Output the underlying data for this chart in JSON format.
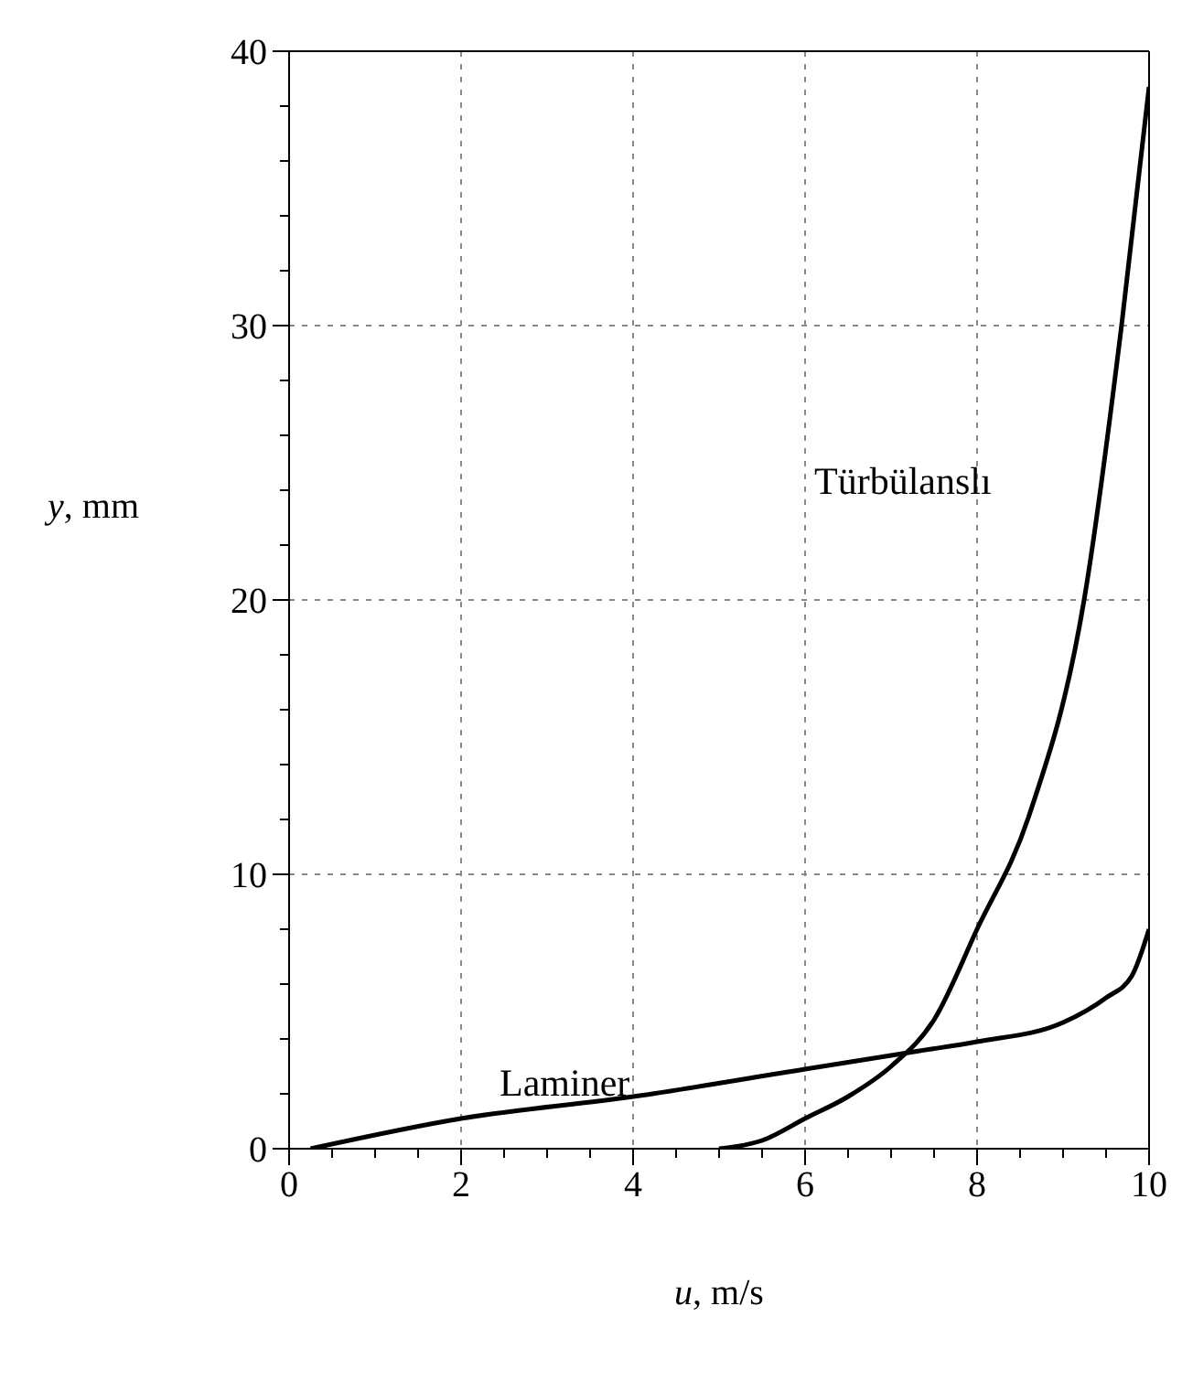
{
  "chart_data": {
    "type": "line",
    "xlabel": "u, m/s",
    "ylabel": "y, mm",
    "xlim": [
      0,
      10
    ],
    "ylim": [
      0,
      40
    ],
    "xticks": [
      0,
      {
        "value": 0.5,
        "label": null
      },
      {
        "value": 1,
        "label": null
      },
      {
        "value": 1.5,
        "label": null
      },
      2,
      {
        "value": 2.5,
        "label": null
      },
      {
        "value": 3,
        "label": null
      },
      {
        "value": 3.5,
        "label": null
      },
      4,
      {
        "value": 4.5,
        "label": null
      },
      {
        "value": 5,
        "label": null
      },
      {
        "value": 5.5,
        "label": null
      },
      6,
      {
        "value": 6.5,
        "label": null
      },
      {
        "value": 7,
        "label": null
      },
      {
        "value": 7.5,
        "label": null
      },
      8,
      {
        "value": 8.5,
        "label": null
      },
      {
        "value": 9,
        "label": null
      },
      {
        "value": 9.5,
        "label": null
      },
      10
    ],
    "yticks": [
      0,
      {
        "value": 2,
        "label": null
      },
      {
        "value": 4,
        "label": null
      },
      {
        "value": 6,
        "label": null
      },
      {
        "value": 8,
        "label": null
      },
      10,
      {
        "value": 12,
        "label": null
      },
      {
        "value": 14,
        "label": null
      },
      {
        "value": 16,
        "label": null
      },
      {
        "value": 18,
        "label": null
      },
      20,
      {
        "value": 22,
        "label": null
      },
      {
        "value": 24,
        "label": null
      },
      {
        "value": 26,
        "label": null
      },
      {
        "value": 28,
        "label": null
      },
      30,
      {
        "value": 32,
        "label": null
      },
      {
        "value": 34,
        "label": null
      },
      {
        "value": 36,
        "label": null
      },
      {
        "value": 38,
        "label": null
      },
      40
    ],
    "grid": true,
    "marker": "none",
    "line_style": "solid",
    "series": [
      {
        "color": "#000000",
        "x": [
          0.25,
          2,
          4,
          6,
          7.3,
          8,
          9,
          9.5,
          9.8,
          10
        ],
        "values": [
          0,
          1.1,
          1.9,
          2.9,
          3.55,
          3.9,
          4.6,
          5.5,
          6.3,
          8
        ]
      },
      {
        "color": "#000000",
        "x": [
          5,
          5.5,
          6,
          6.5,
          7,
          7.5,
          8,
          8.6,
          9.25,
          9.68,
          10
        ],
        "values": [
          0,
          0.3,
          1.1,
          1.9,
          3,
          4.7,
          8,
          12.1,
          20.1,
          30,
          38.7
        ]
      }
    ],
    "annotations": [
      "Laminer",
      "Türbülanslı"
    ]
  }
}
